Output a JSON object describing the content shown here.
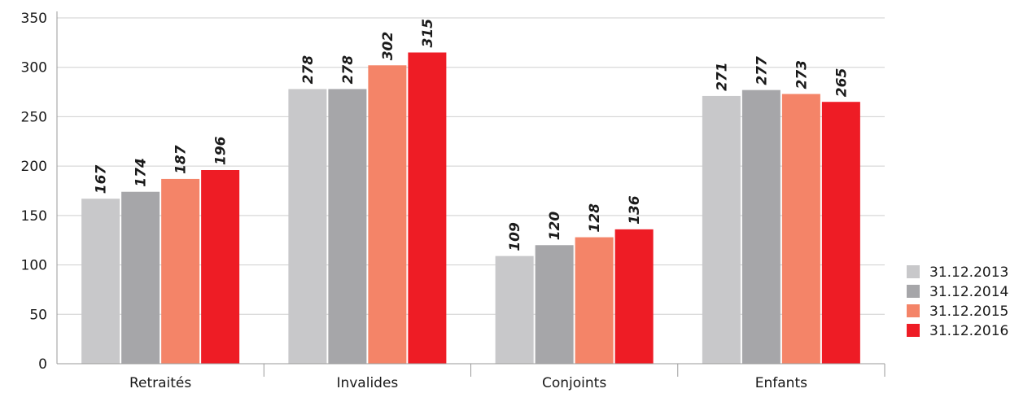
{
  "chart_data": {
    "type": "bar",
    "categories": [
      "Retraités",
      "Invalides",
      "Conjoints",
      "Enfants"
    ],
    "series": [
      {
        "name": "31.12.2013",
        "color": "#c8c8ca",
        "values": [
          167,
          278,
          109,
          271
        ]
      },
      {
        "name": "31.12.2014",
        "color": "#a6a6a9",
        "values": [
          174,
          278,
          120,
          277
        ]
      },
      {
        "name": "31.12.2015",
        "color": "#f48468",
        "values": [
          187,
          302,
          128,
          273
        ]
      },
      {
        "name": "31.12.2016",
        "color": "#ee1c25",
        "values": [
          196,
          315,
          136,
          265
        ]
      }
    ],
    "yticks": [
      0,
      50,
      100,
      150,
      200,
      250,
      300,
      350
    ],
    "ylim": [
      0,
      350
    ],
    "grid": true,
    "legend_position": "bottom-right",
    "title": "",
    "xlabel": "",
    "ylabel": ""
  }
}
